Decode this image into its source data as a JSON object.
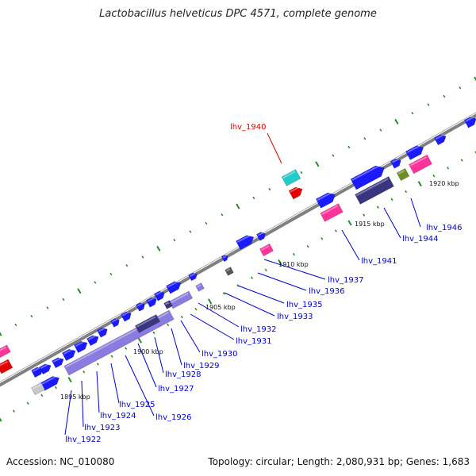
{
  "title": "Lactobacillus helveticus DPC 4571, complete genome",
  "footer": {
    "accession": "Accession: NC_010080",
    "topology": "Topology: circular; Length: 2,080,931 bp; Genes: 1,683"
  },
  "scale_labels": [
    "1895 kbp",
    "1900 kbp",
    "1905 kbp",
    "1910 kbp",
    "1915 kbp",
    "1920 kbp"
  ],
  "gene_labels": [
    {
      "id": "lhv_1940",
      "text": "lhv_1940",
      "color": "#dd0000"
    },
    {
      "id": "lhv_1946",
      "text": "lhv_1946",
      "color": "#0000cc"
    },
    {
      "id": "lhv_1944",
      "text": "lhv_1944",
      "color": "#0000cc"
    },
    {
      "id": "lhv_1941",
      "text": "lhv_1941",
      "color": "#0000cc"
    },
    {
      "id": "lhv_1937",
      "text": "lhv_1937",
      "color": "#0000cc"
    },
    {
      "id": "lhv_1936",
      "text": "lhv_1936",
      "color": "#0000cc"
    },
    {
      "id": "lhv_1935",
      "text": "lhv_1935",
      "color": "#0000cc"
    },
    {
      "id": "lhv_1933",
      "text": "lhv_1933",
      "color": "#0000cc"
    },
    {
      "id": "lhv_1932",
      "text": "lhv_1932",
      "color": "#0000cc"
    },
    {
      "id": "lhv_1931",
      "text": "lhv_1931",
      "color": "#0000cc"
    },
    {
      "id": "lhv_1930",
      "text": "lhv_1930",
      "color": "#0000cc"
    },
    {
      "id": "lhv_1929",
      "text": "lhv_1929",
      "color": "#0000cc"
    },
    {
      "id": "lhv_1928",
      "text": "lhv_1928",
      "color": "#0000cc"
    },
    {
      "id": "lhv_1927",
      "text": "lhv_1927",
      "color": "#0000cc"
    },
    {
      "id": "lhv_1926",
      "text": "lhv_1926",
      "color": "#0000cc"
    },
    {
      "id": "lhv_1925",
      "text": "lhv_1925",
      "color": "#0000cc"
    },
    {
      "id": "lhv_1924",
      "text": "lhv_1924",
      "color": "#0000cc"
    },
    {
      "id": "lhv_1923",
      "text": "lhv_1923",
      "color": "#0000cc"
    },
    {
      "id": "lhv_1922",
      "text": "lhv_1922",
      "color": "#0000cc"
    }
  ],
  "colors": {
    "backbone": "#808080",
    "gene_forward": "#1a1aff",
    "gene_rna": "#ff3399",
    "gene_selected": "#e60000",
    "gene_teal": "#22cccc",
    "gene_olive": "#6b8e23",
    "gene_lavender": "#8a7be0",
    "gene_darkpurple": "#3a3580",
    "gene_gray": "#c8c8c8",
    "tick_major": "#2a8a2a",
    "label_line": "#0000cc",
    "label_line_selected": "#dd0000"
  }
}
